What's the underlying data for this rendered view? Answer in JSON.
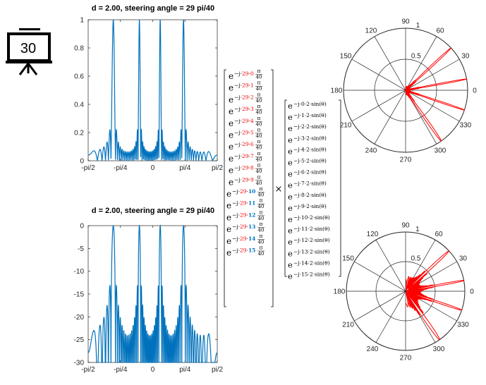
{
  "board": {
    "label": "30",
    "icon": "presentation-board-icon"
  },
  "colors": {
    "curve": "#0072BD",
    "polar": "#FF0000",
    "red_index": "#FF0000",
    "blue_index": "#0072BD"
  },
  "steering_vector": {
    "base": "e",
    "exp_prefix": "−j·29·",
    "frac_num": "π",
    "frac_den": "40",
    "indices": [
      "0",
      "1",
      "2",
      "3",
      "4",
      "5",
      "6",
      "7",
      "8",
      "9",
      "10",
      "11",
      "12",
      "13",
      "14",
      "15"
    ]
  },
  "times_symbol": "×",
  "element_vector": {
    "base": "e",
    "exp_prefix": "−j·",
    "exp_suffix": "·2·sin(θ)",
    "indices": [
      "0",
      "1",
      "2",
      "3",
      "4",
      "5",
      "6",
      "7",
      "8",
      "9",
      "10",
      "11",
      "12",
      "13",
      "14",
      "15"
    ]
  },
  "chart_data": [
    {
      "type": "line",
      "title": "d = 2.00, steering angle  = 29 pi/40",
      "x_tick_labels": [
        "-pi/2",
        "-pi/4",
        "0",
        "pi/4",
        "pi/2"
      ],
      "x_tick_values": [
        -1.5708,
        -0.7854,
        0,
        0.7854,
        1.5708
      ],
      "xlim": [
        -1.5708,
        1.5708
      ],
      "ylim": [
        0,
        1
      ],
      "y_ticks": [
        0,
        0.2,
        0.4,
        0.6,
        0.8,
        1
      ],
      "y_tick_labels": [
        "0",
        "0.2",
        "0.4",
        "0.6",
        "0.8",
        "1"
      ],
      "series": [
        {
          "function": "normalized |array factor|",
          "elements": 16,
          "d": 2.0,
          "steering": "29*pi/40"
        }
      ]
    },
    {
      "type": "line",
      "title": "d = 2.00, steering angle  = 29 pi/40",
      "x_tick_labels": [
        "-pi/2",
        "-pi/4",
        "0",
        "pi/4",
        "pi/2"
      ],
      "x_tick_values": [
        -1.5708,
        -0.7854,
        0,
        0.7854,
        1.5708
      ],
      "xlim": [
        -1.5708,
        1.5708
      ],
      "ylim": [
        -30,
        0
      ],
      "y_ticks": [
        -30,
        -25,
        -20,
        -15,
        -10,
        -5,
        0
      ],
      "y_tick_labels": [
        "-30",
        "-25",
        "-20",
        "-15",
        "-10",
        "-5",
        "0"
      ],
      "series": [
        {
          "function": "20*log10(normalized |array factor|)",
          "elements": 16,
          "d": 2.0,
          "steering": "29*pi/40"
        }
      ]
    },
    {
      "type": "polar",
      "angle_labels": [
        "0",
        "30",
        "60",
        "90",
        "120",
        "150",
        "180",
        "210",
        "240",
        "270",
        "300",
        "330"
      ],
      "radial_labels": [
        "0.5",
        "1"
      ],
      "rlim": [
        0,
        1
      ],
      "series": [
        {
          "function": "normalized |array factor|",
          "elements": 16,
          "d": 2.0,
          "steering": "29*pi/40"
        }
      ]
    },
    {
      "type": "polar",
      "angle_labels": [
        "0",
        "30",
        "60",
        "90",
        "120",
        "150",
        "180",
        "210",
        "240",
        "270",
        "300",
        "330"
      ],
      "radial_labels": [
        "0.5",
        "1"
      ],
      "rlim": [
        0,
        1
      ],
      "series": [
        {
          "function": "sqrt(normalized |array factor|)",
          "elements": 16,
          "d": 2.0,
          "steering": "29*pi/40"
        }
      ]
    }
  ]
}
